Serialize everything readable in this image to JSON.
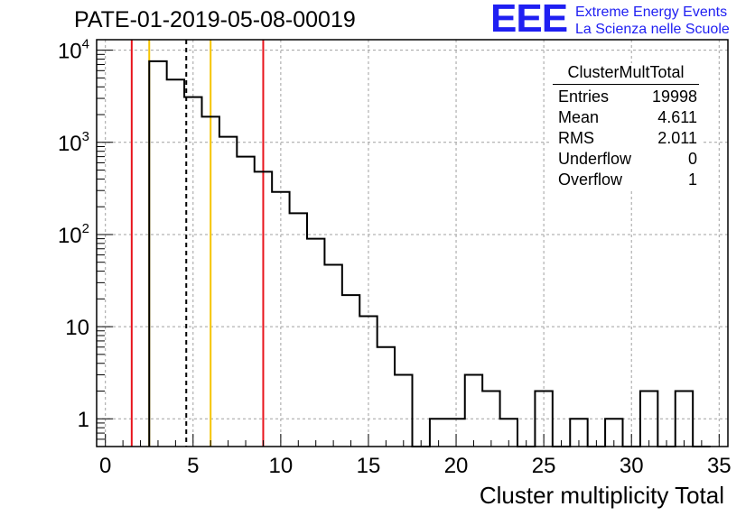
{
  "header": {
    "title": "PATE-01-2019-05-08-00019"
  },
  "logo": {
    "letters": "EEE",
    "line1": "Extreme Energy Events",
    "line2": "La Scienza nelle Scuole",
    "color": "#1f1ff2"
  },
  "stats_box": {
    "title": "ClusterMultTotal",
    "rows": [
      {
        "label": "Entries",
        "value": "19998"
      },
      {
        "label": "Mean",
        "value": "4.611"
      },
      {
        "label": "RMS",
        "value": "2.011"
      },
      {
        "label": "Underflow",
        "value": "0"
      },
      {
        "label": "Overflow",
        "value": "1"
      }
    ]
  },
  "chart_data": {
    "type": "histogram",
    "title": "PATE-01-2019-05-08-00019",
    "xlabel": "Cluster multiplicity Total",
    "ylabel": "",
    "xlim": [
      -0.5,
      35.5
    ],
    "ylim": [
      0.5,
      13000
    ],
    "y_scale": "log",
    "grid": true,
    "x_ticks": [
      0,
      5,
      10,
      15,
      20,
      25,
      30,
      35
    ],
    "y_ticks": [
      {
        "value": 1,
        "label": "1"
      },
      {
        "value": 10,
        "label": "10"
      },
      {
        "value": 100,
        "label": "10^2"
      },
      {
        "value": 1000,
        "label": "10^3"
      },
      {
        "value": 10000,
        "label": "10^4"
      }
    ],
    "bin_width": 1,
    "bins": [
      {
        "center": 3,
        "count": 7600
      },
      {
        "center": 4,
        "count": 4800
      },
      {
        "center": 5,
        "count": 3100
      },
      {
        "center": 6,
        "count": 1900
      },
      {
        "center": 7,
        "count": 1150
      },
      {
        "center": 8,
        "count": 700
      },
      {
        "center": 9,
        "count": 480
      },
      {
        "center": 10,
        "count": 290
      },
      {
        "center": 11,
        "count": 170
      },
      {
        "center": 12,
        "count": 90
      },
      {
        "center": 13,
        "count": 47
      },
      {
        "center": 14,
        "count": 22
      },
      {
        "center": 15,
        "count": 13
      },
      {
        "center": 16,
        "count": 6
      },
      {
        "center": 17,
        "count": 3
      },
      {
        "center": 18,
        "count": 0
      },
      {
        "center": 19,
        "count": 1
      },
      {
        "center": 20,
        "count": 1
      },
      {
        "center": 21,
        "count": 3
      },
      {
        "center": 22,
        "count": 2
      },
      {
        "center": 23,
        "count": 1
      },
      {
        "center": 24,
        "count": 0
      },
      {
        "center": 25,
        "count": 2
      },
      {
        "center": 26,
        "count": 0
      },
      {
        "center": 27,
        "count": 1
      },
      {
        "center": 28,
        "count": 0
      },
      {
        "center": 29,
        "count": 1
      },
      {
        "center": 30,
        "count": 0
      },
      {
        "center": 31,
        "count": 2
      },
      {
        "center": 32,
        "count": 0
      },
      {
        "center": 33,
        "count": 2
      },
      {
        "center": 34,
        "count": 0
      }
    ],
    "vertical_lines": [
      {
        "x": 1.5,
        "color": "#e8141c",
        "style": "solid"
      },
      {
        "x": 2.5,
        "color": "#f5c400",
        "style": "solid"
      },
      {
        "x": 4.611,
        "color": "#000000",
        "style": "dashed"
      },
      {
        "x": 6.0,
        "color": "#f5c400",
        "style": "solid"
      },
      {
        "x": 9.0,
        "color": "#e8141c",
        "style": "solid"
      }
    ]
  }
}
